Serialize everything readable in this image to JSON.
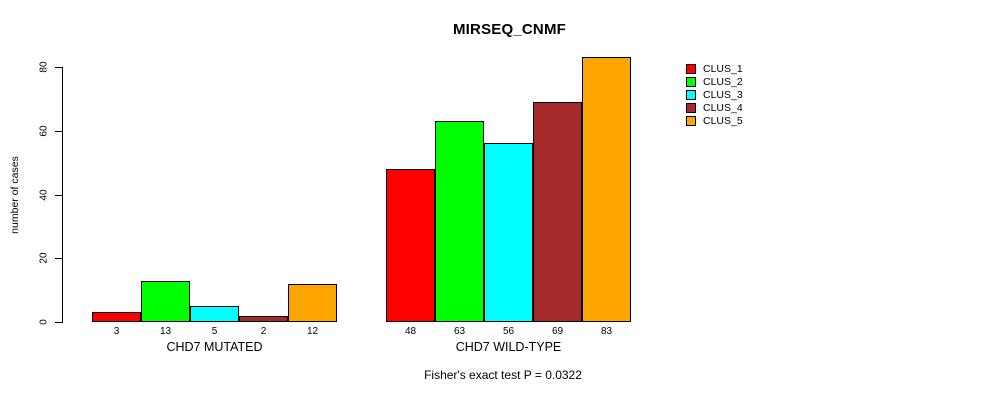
{
  "title": "MIRSEQ_CNMF",
  "footnote": "Fisher's exact test P = 0.0322",
  "legend": {
    "position": "right",
    "items": [
      {
        "label": "CLUS_1",
        "color": "#FF0000"
      },
      {
        "label": "CLUS_2",
        "color": "#00FF00"
      },
      {
        "label": "CLUS_3",
        "color": "#00FFFF"
      },
      {
        "label": "CLUS_4",
        "color": "#A52A2A"
      },
      {
        "label": "CLUS_5",
        "color": "#FFA500"
      }
    ]
  },
  "chart_data": {
    "type": "bar",
    "title": "MIRSEQ_CNMF",
    "xlabel": "",
    "ylabel": "number of cases",
    "ylim": [
      0,
      84
    ],
    "yticks": [
      0,
      20,
      40,
      60,
      80
    ],
    "grid": false,
    "legend_position": "right-outside",
    "bar_value_labels": true,
    "categories": [
      "CHD7 MUTATED",
      "CHD7 WILD-TYPE"
    ],
    "series": [
      {
        "name": "CLUS_1",
        "color": "#FF0000",
        "values": [
          3,
          48
        ]
      },
      {
        "name": "CLUS_2",
        "color": "#00FF00",
        "values": [
          13,
          63
        ]
      },
      {
        "name": "CLUS_3",
        "color": "#00FFFF",
        "values": [
          5,
          56
        ]
      },
      {
        "name": "CLUS_4",
        "color": "#A52A2A",
        "values": [
          2,
          69
        ]
      },
      {
        "name": "CLUS_5",
        "color": "#FFA500",
        "values": [
          12,
          83
        ]
      }
    ],
    "annotation": "Fisher's exact test P = 0.0322"
  }
}
